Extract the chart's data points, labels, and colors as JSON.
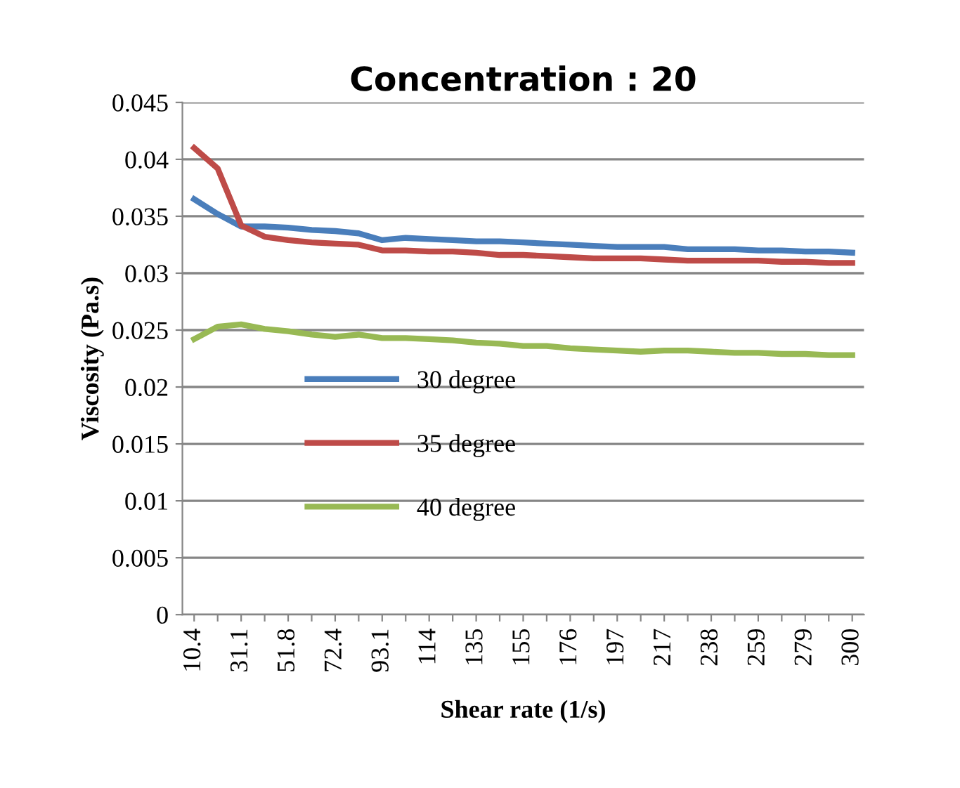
{
  "chart_data": {
    "type": "line",
    "title": "Concentration : 20",
    "xlabel": "Shear rate (1/s)",
    "ylabel": "Viscosity (Pa.s)",
    "categories": [
      "10.4",
      null,
      "31.1",
      null,
      "51.8",
      null,
      "72.4",
      null,
      "93.1",
      null,
      "114",
      null,
      "135",
      null,
      "155",
      null,
      "176",
      null,
      "197",
      null,
      "217",
      null,
      "238",
      null,
      "259",
      null,
      "279",
      null,
      "300"
    ],
    "series": [
      {
        "name": "30 degree",
        "color": "#4a7ebb",
        "values": [
          0.0365,
          0.0352,
          0.0341,
          0.0341,
          0.034,
          0.0338,
          0.0337,
          0.0335,
          0.0329,
          0.0331,
          0.033,
          0.0329,
          0.0328,
          0.0328,
          0.0327,
          0.0326,
          0.0325,
          0.0324,
          0.0323,
          0.0323,
          0.0323,
          0.0321,
          0.0321,
          0.0321,
          0.032,
          0.032,
          0.0319,
          0.0319,
          0.0318
        ]
      },
      {
        "name": "35 degree",
        "color": "#be4b48",
        "values": [
          0.041,
          0.0392,
          0.0342,
          0.0332,
          0.0329,
          0.0327,
          0.0326,
          0.0325,
          0.032,
          0.032,
          0.0319,
          0.0319,
          0.0318,
          0.0316,
          0.0316,
          0.0315,
          0.0314,
          0.0313,
          0.0313,
          0.0313,
          0.0312,
          0.0311,
          0.0311,
          0.0311,
          0.0311,
          0.031,
          0.031,
          0.0309,
          0.0309
        ]
      },
      {
        "name": "40 degree",
        "color": "#98b954",
        "values": [
          0.0242,
          0.0253,
          0.0255,
          0.0251,
          0.0249,
          0.0246,
          0.0244,
          0.0246,
          0.0243,
          0.0243,
          0.0242,
          0.0241,
          0.0239,
          0.0238,
          0.0236,
          0.0236,
          0.0234,
          0.0233,
          0.0232,
          0.0231,
          0.0232,
          0.0232,
          0.0231,
          0.023,
          0.023,
          0.0229,
          0.0229,
          0.0228,
          0.0228
        ]
      }
    ],
    "ylim": [
      0,
      0.045
    ],
    "yticks": [
      0,
      0.005,
      0.01,
      0.015,
      0.02,
      0.025,
      0.03,
      0.035,
      0.04,
      0.045
    ],
    "grid": "y",
    "legend": "center left",
    "marker": "none",
    "line_style": "solid"
  }
}
